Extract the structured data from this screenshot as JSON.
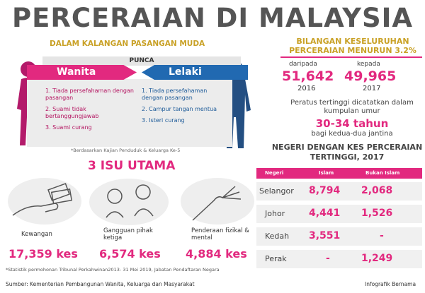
{
  "title": "PERCERAIAN DI MALAYSIA",
  "subtitle": "DALAM KALANGAN PASANGAN MUDA",
  "punca": {
    "label": "PUNCA",
    "wanita": {
      "label": "Wanita",
      "color": "#e2297f",
      "items": [
        "1. Tiada persefahaman dengan pasangan",
        "2. Suami tidak bertanggungjawab",
        "3. Suami curang"
      ]
    },
    "lelaki": {
      "label": "Lelaki",
      "color": "#2169b1",
      "items": [
        "1. Tiada persefahaman dengan pasangan",
        "2. Campur tangan mentua",
        "3. Isteri curang"
      ]
    },
    "footnote": "*Berdasarkan Kajian Penduduk & Keluarga Ke-5"
  },
  "isu_utama": {
    "title": "3 ISU UTAMA",
    "items": [
      {
        "label": "Kewangan",
        "value": "17,359 kes",
        "icon": "money-hand-icon"
      },
      {
        "label": "Gangguan pihak ketiga",
        "value": "6,574 kes",
        "icon": "couple-dispute-icon"
      },
      {
        "label": "Penderaan fizikal & mental",
        "value": "4,884 kes",
        "icon": "reaching-hand-icon"
      }
    ],
    "footnote": "*Statistik permohonan Tribunal Perkahwinan2013- 31 Mei 2019, Jabatan Pendaftaran Negara"
  },
  "keseluruhan": {
    "heading": "BILANGAN KESELURUHAN PERCERAIAN MENURUN 3.2%",
    "from_label": "daripada",
    "from_value": "51,642",
    "from_year": "2016",
    "to_label": "kepada",
    "to_value": "49,965",
    "to_year": "2017"
  },
  "peratus": {
    "text": "Peratus tertinggi dicatatkan dalam kumpulan umur",
    "age": "30-34 tahun",
    "sub": "bagi kedua-dua jantina"
  },
  "negeri": {
    "title": "NEGERI DENGAN KES PERCERAIAN TERTINGGI, 2017",
    "headers": [
      "Negeri",
      "Islam",
      "Bukan Islam"
    ],
    "rows": [
      {
        "state": "Selangor",
        "islam": "8,794",
        "bukan_islam": "2,068"
      },
      {
        "state": "Johor",
        "islam": "4,441",
        "bukan_islam": "1,526"
      },
      {
        "state": "Kedah",
        "islam": "3,551",
        "bukan_islam": "-"
      },
      {
        "state": "Perak",
        "islam": "-",
        "bukan_islam": "1,249"
      }
    ]
  },
  "source": "Sumber: Kementerian Pembangunan Wanita, Keluarga dan Masyarakat",
  "credit": "Infografik Bernama",
  "colors": {
    "pink": "#e2297f",
    "blue": "#2169b1",
    "gold": "#c9a126"
  }
}
